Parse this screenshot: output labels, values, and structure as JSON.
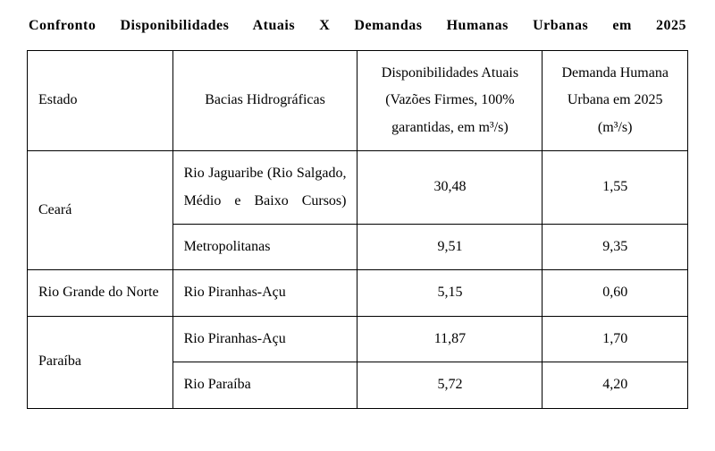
{
  "title": "Confronto Disponibilidades Atuais X Demandas Humanas Urbanas em 2025",
  "columns": {
    "estado": "Estado",
    "bacia": "Bacias Hidrográficas",
    "disp": "Disponibilidades Atuais (Vazões Firmes, 100% garantidas, em m³/s)",
    "dem": "Demanda Humana Urbana em 2025 (m³/s)"
  },
  "states": {
    "ceara": "Ceará",
    "rn": "Rio Grande do Norte",
    "paraiba": "Paraíba"
  },
  "rows": {
    "ceara1_bacia": "Rio Jaguaribe (Rio Salgado, Médio e Baixo Cursos)",
    "ceara1_disp": "30,48",
    "ceara1_dem": "1,55",
    "ceara2_bacia": "Metropolitanas",
    "ceara2_disp": "9,51",
    "ceara2_dem": "9,35",
    "rn1_bacia": "Rio Piranhas-Açu",
    "rn1_disp": "5,15",
    "rn1_dem": "0,60",
    "pb1_bacia": "Rio Piranhas-Açu",
    "pb1_disp": "11,87",
    "pb1_dem": "1,70",
    "pb2_bacia": "Rio Paraíba",
    "pb2_disp": "5,72",
    "pb2_dem": "4,20"
  },
  "style": {
    "font_family": "Times New Roman",
    "title_weight": "bold",
    "border_color": "#000000",
    "background": "#ffffff"
  }
}
